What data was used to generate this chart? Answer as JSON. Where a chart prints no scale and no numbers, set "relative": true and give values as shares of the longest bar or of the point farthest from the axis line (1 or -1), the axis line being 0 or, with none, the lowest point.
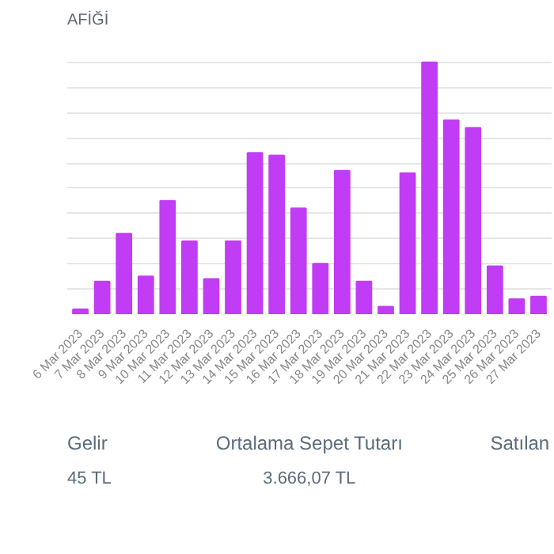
{
  "chart_data": {
    "type": "bar",
    "title": "AFİĞİ",
    "categories": [
      "6 Mar 2023",
      "7 Mar 2023",
      "8 Mar 2023",
      "9 Mar 2023",
      "10 Mar 2023",
      "11 Mar 2023",
      "12 Mar 2023",
      "13 Mar 2023",
      "14 Mar 2023",
      "15 Mar 2023",
      "16 Mar 2023",
      "17 Mar 2023",
      "18 Mar 2023",
      "19 Mar 2023",
      "20 Mar 2023",
      "21 Mar 2023",
      "22 Mar 2023",
      "23 Mar 2023",
      "24 Mar 2023",
      "25 Mar 2023",
      "26 Mar 2023",
      "27 Mar 2023"
    ],
    "values": [
      0.02,
      0.13,
      0.32,
      0.15,
      0.45,
      0.29,
      0.14,
      0.29,
      0.64,
      0.63,
      0.42,
      0.2,
      0.57,
      0.13,
      0.03,
      0.56,
      1.0,
      0.77,
      0.74,
      0.19,
      0.06,
      0.07
    ],
    "color": "#c13cf5",
    "relative": true,
    "grid": "y",
    "annotations": [
      "Gelir",
      "Ortalama Sepet Tutarı",
      "Satılan",
      "45 TL",
      "3.666,07 TL"
    ]
  }
}
